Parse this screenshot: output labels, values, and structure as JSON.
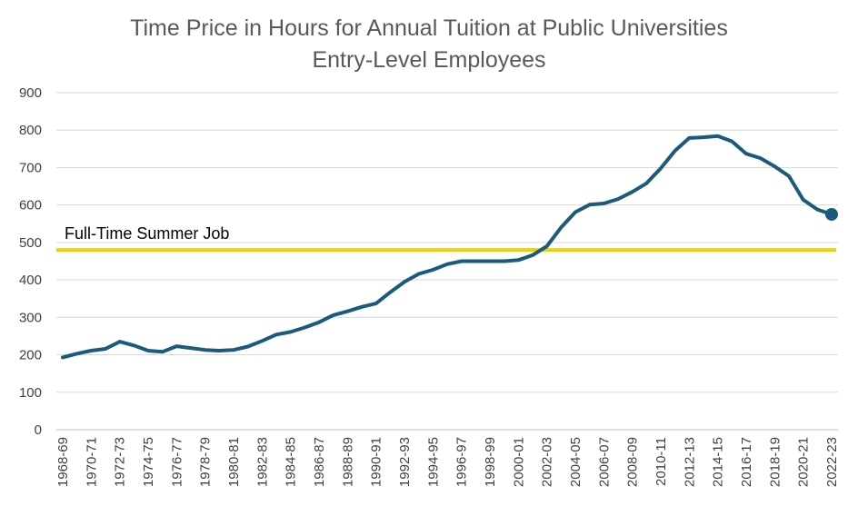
{
  "chart_data": {
    "type": "line",
    "title": "Time Price in Hours for Annual Tuition at Public Universities",
    "subtitle": "Entry-Level Employees",
    "xlabel": "",
    "ylabel": "",
    "ylim": [
      0,
      900
    ],
    "yticks": [
      0,
      100,
      200,
      300,
      400,
      500,
      600,
      700,
      800,
      900
    ],
    "grid": true,
    "categories": [
      "1968-69",
      "1969-70",
      "1970-71",
      "1971-72",
      "1972-73",
      "1973-74",
      "1974-75",
      "1975-76",
      "1976-77",
      "1977-78",
      "1978-79",
      "1979-80",
      "1980-81",
      "1981-82",
      "1982-83",
      "1983-84",
      "1984-85",
      "1985-86",
      "1986-87",
      "1987-88",
      "1988-89",
      "1989-90",
      "1990-91",
      "1991-92",
      "1992-93",
      "1993-94",
      "1994-95",
      "1995-96",
      "1996-97",
      "1997-98",
      "1998-99",
      "1999-00",
      "2000-01",
      "2001-02",
      "2002-03",
      "2003-04",
      "2004-05",
      "2005-06",
      "2006-07",
      "2007-08",
      "2008-09",
      "2009-10",
      "2010-11",
      "2011-12",
      "2012-13",
      "2013-14",
      "2014-15",
      "2015-16",
      "2016-17",
      "2017-18",
      "2018-19",
      "2019-20",
      "2020-21",
      "2021-22",
      "2022-23"
    ],
    "tick_labels": [
      "1968-69",
      "1970-71",
      "1972-73",
      "1974-75",
      "1976-77",
      "1978-79",
      "1980-81",
      "1982-83",
      "1984-85",
      "1986-87",
      "1988-89",
      "1990-91",
      "1992-93",
      "1994-95",
      "1996-97",
      "1998-99",
      "2000-01",
      "2002-03",
      "2004-05",
      "2006-07",
      "2008-09",
      "2010-11",
      "2012-13",
      "2014-15",
      "2016-17",
      "2018-19",
      "2020-21",
      "2022-23"
    ],
    "series": [
      {
        "name": "",
        "color": "#1a5a7a",
        "values": [
          193,
          203,
          211,
          216,
          235,
          225,
          211,
          208,
          223,
          218,
          213,
          211,
          213,
          222,
          237,
          254,
          261,
          273,
          287,
          306,
          316,
          328,
          337,
          367,
          395,
          416,
          427,
          442,
          450,
          450,
          450,
          450,
          453,
          466,
          490,
          540,
          581,
          601,
          604,
          616,
          635,
          658,
          698,
          745,
          779,
          781,
          784,
          770,
          737,
          725,
          703,
          677,
          614,
          588,
          575
        ]
      }
    ],
    "reference_line": {
      "label": "Full-Time Summer Job",
      "value": 480,
      "color": "#f5d000"
    },
    "colors": {
      "line": "#1a5a7a",
      "reference": "#f5d000",
      "grid": "#d9d9d9",
      "title": "#595959"
    }
  }
}
